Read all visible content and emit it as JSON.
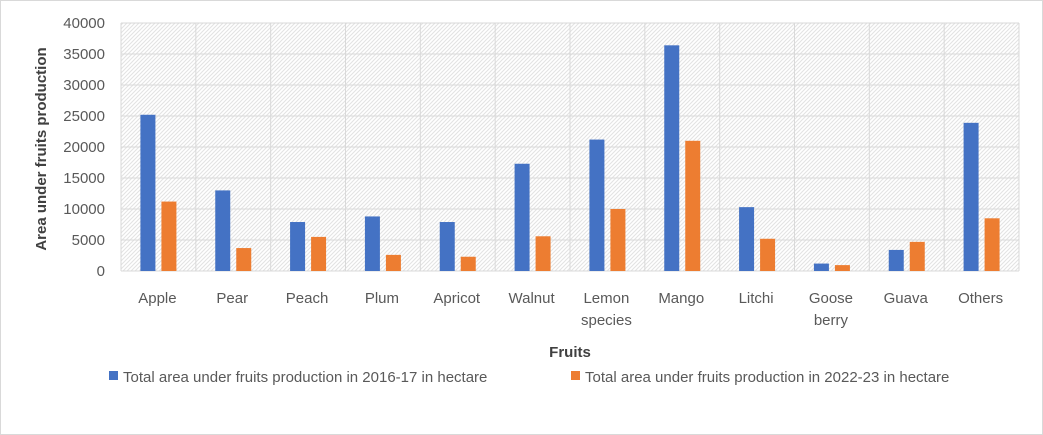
{
  "chart_data": {
    "type": "bar",
    "categories": [
      [
        "Apple"
      ],
      [
        "Pear"
      ],
      [
        "Peach"
      ],
      [
        "Plum"
      ],
      [
        "Apricot"
      ],
      [
        "Walnut"
      ],
      [
        "Lemon",
        "species"
      ],
      [
        "Mango"
      ],
      [
        "Litchi"
      ],
      [
        "Goose",
        "berry"
      ],
      [
        "Guava"
      ],
      [
        "Others"
      ]
    ],
    "series": [
      {
        "name": "Total area under fruits production in 2016-17 in hectare",
        "color": "#4472c4",
        "values": [
          25200,
          13000,
          7900,
          8800,
          7900,
          17300,
          21200,
          36400,
          10300,
          1200,
          3400,
          23900
        ]
      },
      {
        "name": "Total area under fruits production in 2022-23 in hectare",
        "color": "#ed7d31",
        "values": [
          11200,
          3700,
          5500,
          2600,
          2300,
          5600,
          10000,
          21000,
          5200,
          950,
          4700,
          8500
        ]
      }
    ],
    "xlabel": "Fruits",
    "ylabel": "Area under fruits production",
    "ylim": [
      0,
      40000
    ],
    "yticks": [
      0,
      5000,
      10000,
      15000,
      20000,
      25000,
      30000,
      35000,
      40000
    ],
    "legend_position": "bottom",
    "grid": true,
    "plot_background": "hatched"
  }
}
